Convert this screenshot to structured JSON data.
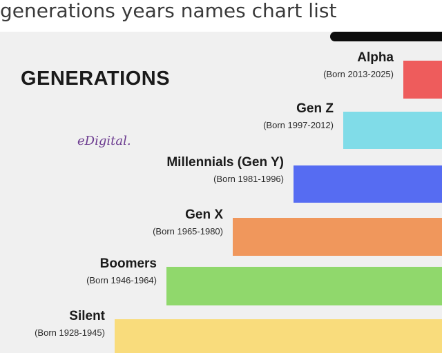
{
  "caption": "generations years names chart list",
  "heading": "GENERATIONS",
  "brand": "eDigital.",
  "chart_data": {
    "type": "bar",
    "orientation": "horizontal",
    "categories": [
      "Alpha",
      "Gen Z",
      "Millennials (Gen Y)",
      "Gen X",
      "Boomers",
      "Silent"
    ],
    "years_text": [
      "(Born 2013-2025)",
      "(Born 1997-2012)",
      "(Born 1981-1996)",
      "(Born 1965-1980)",
      "(Born 1946-1964)",
      "(Born 1928-1945)"
    ],
    "start_year": [
      2013,
      1997,
      1981,
      1965,
      1946,
      1928
    ],
    "end_year": [
      2025,
      2012,
      1996,
      1980,
      1964,
      1945
    ],
    "colors": [
      "#ee5c5c",
      "#80dce8",
      "#566cf2",
      "#f0975c",
      "#90d86c",
      "#f9dc7c"
    ]
  }
}
